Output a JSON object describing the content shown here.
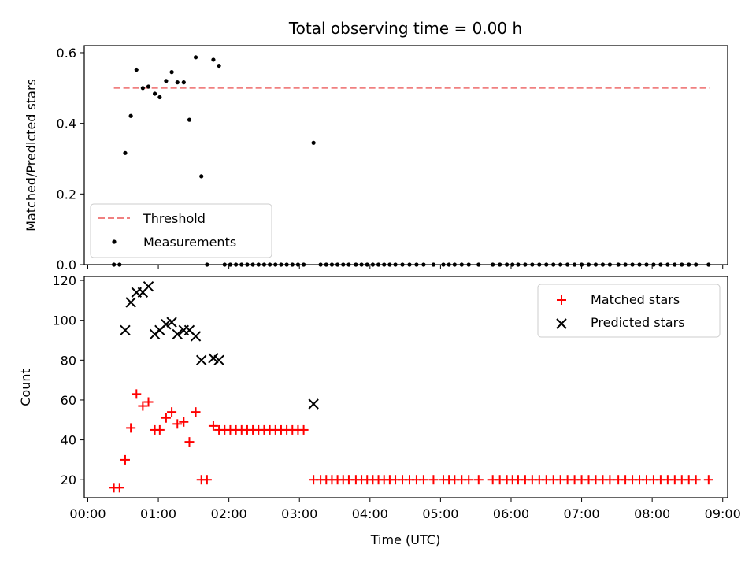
{
  "chart_data": [
    {
      "type": "scatter",
      "title": "Total observing time = 0.00 h",
      "ylabel": "Matched/Predicted stars",
      "xlabel": "",
      "xlim": [
        -0.05,
        9.07
      ],
      "ylim": [
        0,
        0.62
      ],
      "yticks": [
        0.0,
        0.2,
        0.4,
        0.6
      ],
      "ytick_labels": [
        "0.0",
        "0.2",
        "0.4",
        "0.6"
      ],
      "xticks": [
        0,
        1,
        2,
        3,
        4,
        5,
        6,
        7,
        8,
        9
      ],
      "legend_position": "lower-left",
      "grid": false,
      "threshold": {
        "name": "Threshold",
        "value": 0.5,
        "x_range": [
          0.37,
          8.82
        ],
        "color": "#f08080"
      },
      "series": [
        {
          "name": "Measurements",
          "color": "#000000",
          "x": [
            0.37,
            0.45,
            0.53,
            0.61,
            0.69,
            0.78,
            0.86,
            0.95,
            1.02,
            1.11,
            1.19,
            1.27,
            1.36,
            1.44,
            1.53,
            1.61,
            1.69,
            1.78,
            1.86,
            1.94,
            2.02,
            2.1,
            2.18,
            2.26,
            2.34,
            2.42,
            2.5,
            2.58,
            2.66,
            2.74,
            2.82,
            2.9,
            2.98,
            3.06,
            3.2,
            3.3,
            3.38,
            3.46,
            3.54,
            3.62,
            3.7,
            3.8,
            3.88,
            3.96,
            4.04,
            4.12,
            4.2,
            4.28,
            4.36,
            4.46,
            4.56,
            4.66,
            4.76,
            4.9,
            5.04,
            5.12,
            5.2,
            5.3,
            5.4,
            5.54,
            5.74,
            5.84,
            5.94,
            6.02,
            6.1,
            6.2,
            6.3,
            6.4,
            6.5,
            6.6,
            6.7,
            6.8,
            6.9,
            7.0,
            7.1,
            7.2,
            7.3,
            7.4,
            7.52,
            7.62,
            7.72,
            7.82,
            7.92,
            8.02,
            8.12,
            8.22,
            8.32,
            8.42,
            8.52,
            8.62,
            8.8
          ],
          "y": [
            0,
            0,
            0.316,
            0.421,
            0.552,
            0.5,
            0.504,
            0.484,
            0.474,
            0.52,
            0.545,
            0.516,
            0.516,
            0.41,
            0.587,
            0.25,
            0,
            0.58,
            0.563,
            0,
            0,
            0,
            0,
            0,
            0,
            0,
            0,
            0,
            0,
            0,
            0,
            0,
            0,
            0,
            0.345,
            0,
            0,
            0,
            0,
            0,
            0,
            0,
            0,
            0,
            0,
            0,
            0,
            0,
            0,
            0,
            0,
            0,
            0,
            0,
            0,
            0,
            0,
            0,
            0,
            0,
            0,
            0,
            0,
            0,
            0,
            0,
            0,
            0,
            0,
            0,
            0,
            0,
            0,
            0,
            0,
            0,
            0,
            0,
            0,
            0,
            0,
            0,
            0,
            0,
            0,
            0,
            0,
            0,
            0,
            0,
            0
          ]
        }
      ]
    },
    {
      "type": "scatter",
      "title": "",
      "ylabel": "Count",
      "xlabel": "Time (UTC)",
      "xlim": [
        -0.05,
        9.07
      ],
      "ylim": [
        11,
        122
      ],
      "yticks": [
        20,
        40,
        60,
        80,
        100,
        120
      ],
      "ytick_labels": [
        "20",
        "40",
        "60",
        "80",
        "100",
        "120"
      ],
      "xticks": [
        0,
        1,
        2,
        3,
        4,
        5,
        6,
        7,
        8,
        9
      ],
      "xtick_labels": [
        "00:00",
        "01:00",
        "02:00",
        "03:00",
        "04:00",
        "05:00",
        "06:00",
        "07:00",
        "08:00",
        "09:00"
      ],
      "legend_position": "upper-right",
      "grid": false,
      "series": [
        {
          "name": "Matched stars",
          "marker": "plus",
          "color": "#ff0000",
          "x": [
            0.37,
            0.45,
            0.53,
            0.61,
            0.69,
            0.78,
            0.86,
            0.95,
            1.02,
            1.11,
            1.19,
            1.27,
            1.36,
            1.44,
            1.53,
            1.61,
            1.69,
            1.78,
            1.86,
            1.94,
            2.02,
            2.1,
            2.18,
            2.26,
            2.34,
            2.42,
            2.5,
            2.58,
            2.66,
            2.74,
            2.82,
            2.9,
            2.98,
            3.06,
            3.2,
            3.3,
            3.38,
            3.46,
            3.54,
            3.62,
            3.7,
            3.8,
            3.88,
            3.96,
            4.04,
            4.12,
            4.2,
            4.28,
            4.36,
            4.46,
            4.56,
            4.66,
            4.76,
            4.9,
            5.04,
            5.12,
            5.2,
            5.3,
            5.4,
            5.54,
            5.74,
            5.84,
            5.94,
            6.02,
            6.1,
            6.2,
            6.3,
            6.4,
            6.5,
            6.6,
            6.7,
            6.8,
            6.9,
            7.0,
            7.1,
            7.2,
            7.3,
            7.4,
            7.52,
            7.62,
            7.72,
            7.82,
            7.92,
            8.02,
            8.12,
            8.22,
            8.32,
            8.42,
            8.52,
            8.62,
            8.8
          ],
          "y": [
            16,
            16,
            30,
            46,
            63,
            57,
            59,
            45,
            45,
            51,
            54,
            48,
            49,
            39,
            54,
            20,
            20,
            47,
            45,
            45,
            45,
            45,
            45,
            45,
            45,
            45,
            45,
            45,
            45,
            45,
            45,
            45,
            45,
            45,
            20,
            20,
            20,
            20,
            20,
            20,
            20,
            20,
            20,
            20,
            20,
            20,
            20,
            20,
            20,
            20,
            20,
            20,
            20,
            20,
            20,
            20,
            20,
            20,
            20,
            20,
            20,
            20,
            20,
            20,
            20,
            20,
            20,
            20,
            20,
            20,
            20,
            20,
            20,
            20,
            20,
            20,
            20,
            20,
            20,
            20,
            20,
            20,
            20,
            20,
            20,
            20,
            20,
            20,
            20,
            20,
            20
          ]
        },
        {
          "name": "Predicted stars",
          "marker": "x",
          "color": "#000000",
          "x": [
            0.53,
            0.61,
            0.69,
            0.78,
            0.86,
            0.95,
            1.02,
            1.11,
            1.19,
            1.27,
            1.36,
            1.44,
            1.53,
            1.61,
            1.78,
            1.86,
            3.2
          ],
          "y": [
            95,
            109,
            114,
            114,
            117,
            93,
            95,
            98,
            99,
            93,
            95,
            95,
            92,
            80,
            81,
            80,
            58
          ]
        }
      ]
    }
  ]
}
